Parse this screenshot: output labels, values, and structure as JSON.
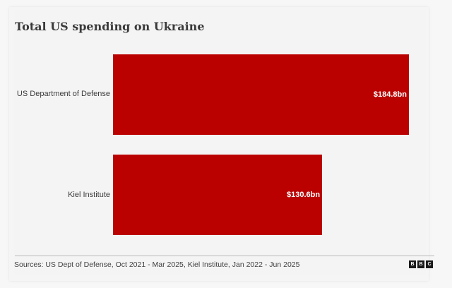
{
  "title": "Total US spending on Ukraine",
  "source": "Sources: US Dept of Defense, Oct 2021 - Mar 2025, Kiel Institute, Jan 2022 - Jun 2025",
  "logo": [
    "B",
    "B",
    "C"
  ],
  "colors": {
    "bar": "#bb0000",
    "label_text": "#ffffff"
  },
  "chart_data": {
    "type": "bar",
    "orientation": "horizontal",
    "title": "Total US spending on Ukraine",
    "categories": [
      "US Department of Defense",
      "Kiel Institute"
    ],
    "values": [
      184.8,
      130.6
    ],
    "value_labels": [
      "$184.8bn",
      "$130.6bn"
    ],
    "unit": "US$ billion",
    "xlabel": "",
    "ylabel": "",
    "grid": false,
    "legend": null,
    "source": "Sources: US Dept of Defense, Oct 2021 - Mar 2025, Kiel Institute, Jan 2022 - Jun 2025"
  }
}
